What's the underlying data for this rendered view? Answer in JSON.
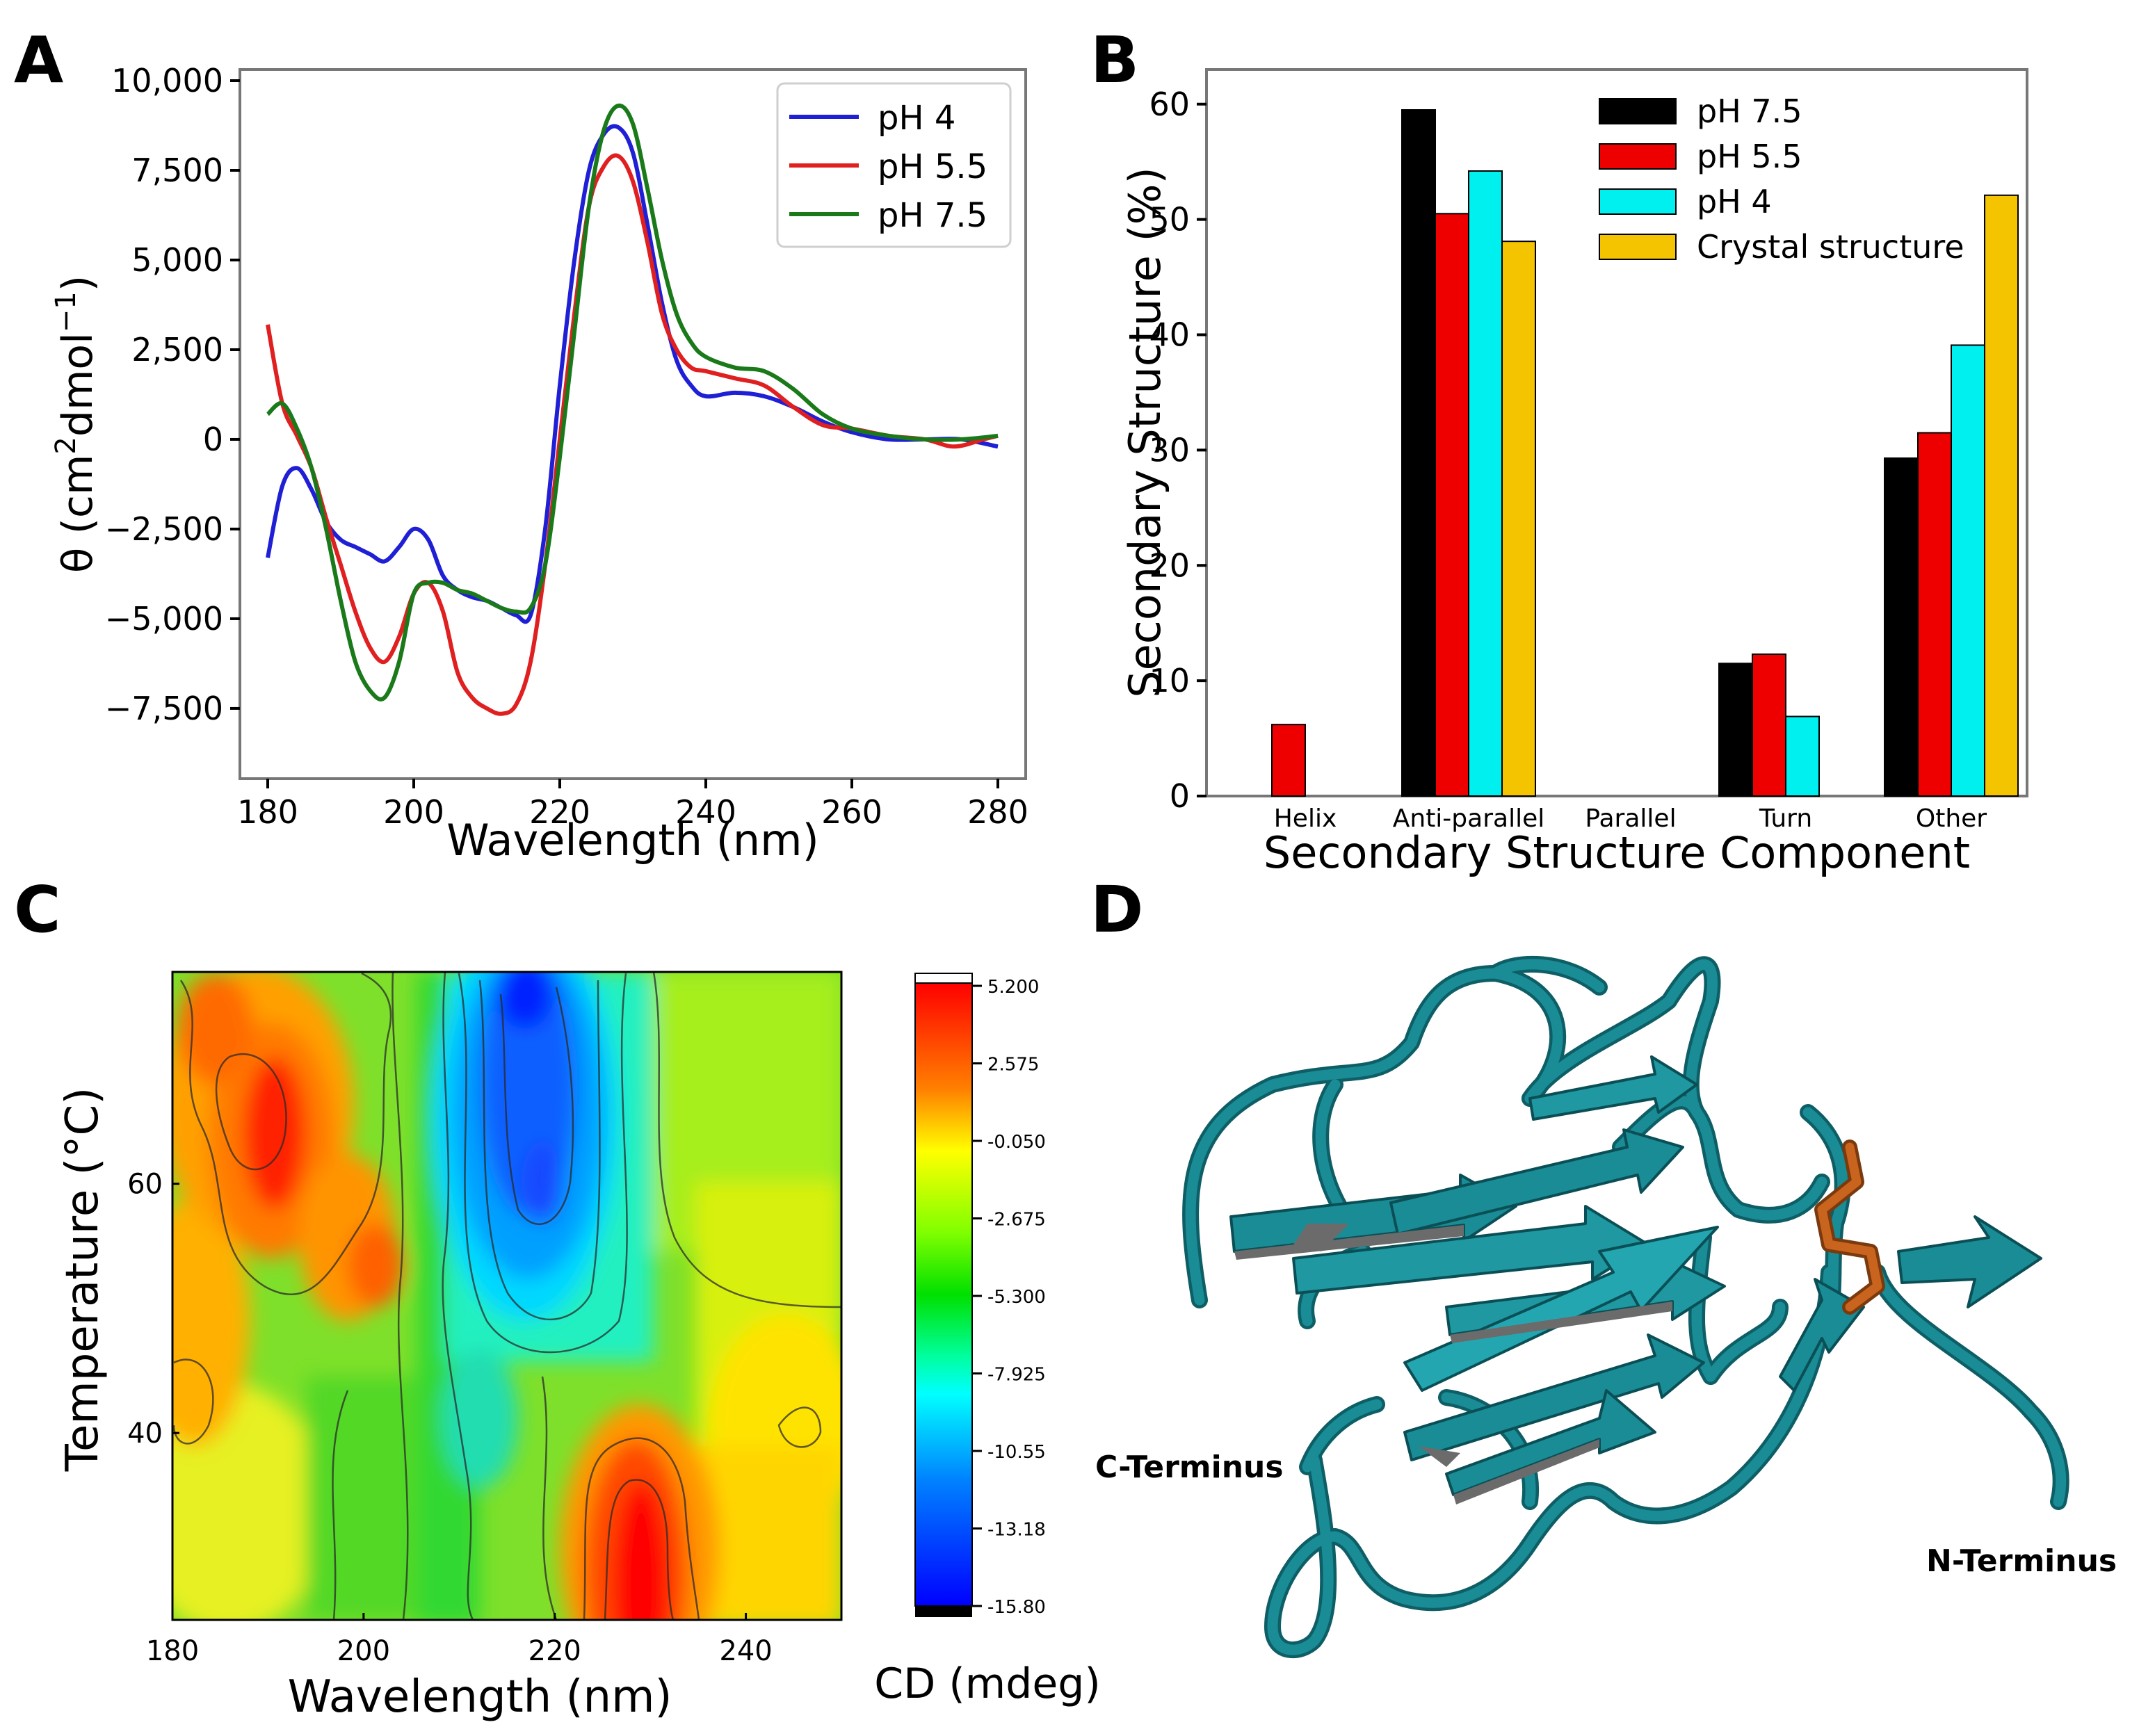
{
  "figure": {
    "panel_labels": [
      "A",
      "B",
      "C",
      "D"
    ]
  },
  "chart_data": [
    {
      "panel": "A",
      "type": "line",
      "xlabel": "Wavelength (nm)",
      "ylabel_prefix": "θ (cm",
      "ylabel_sup1": "2",
      "ylabel_mid": "dmol",
      "ylabel_sup2": "−1",
      "ylabel_suffix": ")",
      "xlim": [
        180,
        280
      ],
      "ylim": [
        -8800,
        10000
      ],
      "x_ticks": [
        180,
        200,
        220,
        240,
        260,
        280
      ],
      "y_ticks": [
        10000,
        7500,
        5000,
        2500,
        0,
        -2500,
        -5000,
        -7500
      ],
      "y_tick_labels": [
        "10,000",
        "7,500",
        "5,000",
        "2,500",
        "0",
        "−2,500",
        "−5,000",
        "−7,500"
      ],
      "legend": "top-right",
      "series": [
        {
          "name": "pH 4",
          "color": "#1f1fd6",
          "x": [
            180,
            182,
            184,
            186,
            188,
            190,
            192,
            194,
            196,
            198,
            200,
            202,
            204,
            206,
            208,
            210,
            212,
            214,
            216,
            218,
            220,
            222,
            224,
            226,
            228,
            230,
            232,
            234,
            236,
            238,
            240,
            244,
            248,
            252,
            256,
            260,
            265,
            270,
            275,
            280
          ],
          "y": [
            -3300,
            -1300,
            -800,
            -1400,
            -2300,
            -2800,
            -3000,
            -3200,
            -3400,
            -3000,
            -2500,
            -2800,
            -3800,
            -4200,
            -4400,
            -4500,
            -4700,
            -4900,
            -4900,
            -2500,
            1500,
            5000,
            7500,
            8500,
            8700,
            8000,
            6000,
            3800,
            2200,
            1500,
            1200,
            1300,
            1200,
            900,
            500,
            200,
            0,
            0,
            0,
            -200
          ]
        },
        {
          "name": "pH 5.5",
          "color": "#e02020",
          "x": [
            180,
            182,
            184,
            186,
            188,
            190,
            192,
            194,
            196,
            198,
            200,
            202,
            204,
            206,
            208,
            210,
            212,
            214,
            216,
            218,
            220,
            222,
            224,
            226,
            228,
            230,
            232,
            234,
            236,
            238,
            240,
            244,
            248,
            252,
            256,
            260,
            265,
            270,
            274,
            278,
            280
          ],
          "y": [
            3200,
            1000,
            100,
            -800,
            -2200,
            -3500,
            -4800,
            -5800,
            -6200,
            -5500,
            -4300,
            -4000,
            -4800,
            -6500,
            -7200,
            -7500,
            -7650,
            -7400,
            -6200,
            -3500,
            0,
            3500,
            6500,
            7600,
            7900,
            7200,
            5500,
            3500,
            2500,
            2000,
            1900,
            1700,
            1500,
            900,
            400,
            300,
            100,
            0,
            -200,
            0,
            100
          ]
        },
        {
          "name": "pH 7.5",
          "color": "#1a7a1a",
          "x": [
            180,
            182,
            184,
            186,
            188,
            190,
            192,
            194,
            196,
            198,
            200,
            202,
            204,
            206,
            208,
            210,
            212,
            214,
            216,
            218,
            220,
            222,
            224,
            226,
            228,
            230,
            232,
            234,
            236,
            238,
            240,
            244,
            248,
            252,
            256,
            260,
            265,
            270,
            275,
            280
          ],
          "y": [
            700,
            1000,
            300,
            -800,
            -2500,
            -4500,
            -6200,
            -7000,
            -7200,
            -6200,
            -4300,
            -4000,
            -4000,
            -4200,
            -4300,
            -4500,
            -4700,
            -4800,
            -4700,
            -3500,
            -500,
            3000,
            6500,
            8600,
            9300,
            8800,
            7000,
            5000,
            3500,
            2700,
            2300,
            2000,
            1900,
            1400,
            700,
            300,
            100,
            0,
            0,
            100
          ]
        }
      ]
    },
    {
      "panel": "B",
      "type": "bar",
      "xlabel": "Secondary Structure Component",
      "ylabel": "Secondary Structure (%)",
      "ylim": [
        0,
        63
      ],
      "y_ticks": [
        0,
        10,
        20,
        30,
        40,
        50,
        60
      ],
      "categories": [
        "Helix",
        "Anti-parallel",
        "Parallel",
        "Turn",
        "Other"
      ],
      "legend": "top-right",
      "series": [
        {
          "name": "pH 7.5",
          "color": "#000000",
          "values": [
            0,
            59.5,
            0,
            11.5,
            29.3
          ]
        },
        {
          "name": "pH 5.5",
          "color": "#ee0000",
          "values": [
            6.2,
            50.5,
            0,
            12.3,
            31.5
          ]
        },
        {
          "name": "pH 4",
          "color": "#00f0f0",
          "values": [
            0,
            54.2,
            0,
            6.9,
            39.1
          ]
        },
        {
          "name": "Crystal structure",
          "color": "#f5c400",
          "values": [
            0,
            48.1,
            0,
            0,
            52.1
          ]
        }
      ]
    },
    {
      "panel": "C",
      "type": "heatmap",
      "xlabel": "Wavelength (nm)",
      "ylabel": "Temperature (°C)",
      "colorbar_label": "CD (mdeg)",
      "xlim": [
        180,
        250
      ],
      "ylim": [
        25,
        77
      ],
      "x_ticks": [
        180,
        200,
        220,
        240
      ],
      "y_ticks": [
        40,
        60
      ],
      "colorbar_ticks": [
        "5.200",
        "2.575",
        "-0.050",
        "-2.675",
        "-5.300",
        "-7.925",
        "-10.55",
        "-13.18",
        "-15.80"
      ],
      "value_range": [
        -15.8,
        5.2
      ]
    }
  ],
  "panel_d": {
    "labels": {
      "c_terminus": "C-Terminus",
      "n_terminus": "N-Terminus"
    },
    "colors": {
      "ribbon": "#1a8c96",
      "ribbon_dark": "#0e5e66",
      "disulfide": "#c8641e"
    }
  }
}
